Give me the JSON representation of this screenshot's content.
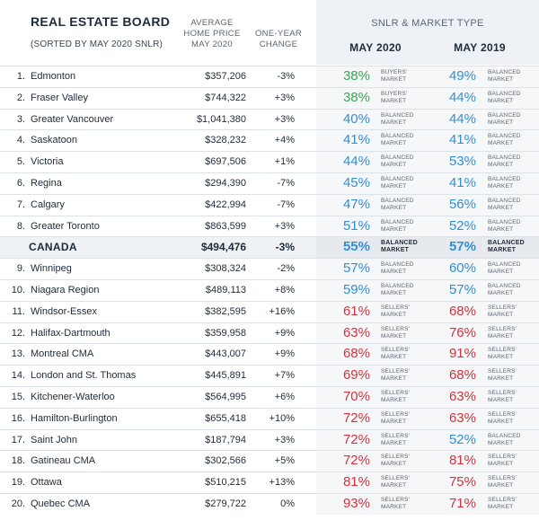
{
  "header": {
    "board_title": "REAL ESTATE BOARD",
    "sorted_note": "(SORTED BY MAY 2020 SNLR)",
    "avg_price_line1": "AVERAGE",
    "avg_price_line2": "HOME PRICE",
    "avg_price_line3": "MAY 2020",
    "change_line1": "ONE-YEAR",
    "change_line2": "CHANGE",
    "snlr_title": "SNLR & MARKET TYPE",
    "may2020": "MAY 2020",
    "may2019": "MAY 2019"
  },
  "colors": {
    "blue": "#2f8fd8",
    "green": "#3aa655",
    "red": "#d8303a"
  },
  "rows": [
    {
      "rank": "1.",
      "name": "Edmonton",
      "price": "$357,206",
      "change": "-3%",
      "snlr2020": "38%",
      "mkt2020a": "BUYERS'",
      "mkt2020b": "MARKET",
      "c2020": "green",
      "snlr2019": "49%",
      "mkt2019a": "BALANCED",
      "mkt2019b": "MARKET",
      "c2019": "blue"
    },
    {
      "rank": "2.",
      "name": "Fraser Valley",
      "price": "$744,322",
      "change": "+3%",
      "snlr2020": "38%",
      "mkt2020a": "BUYERS'",
      "mkt2020b": "MARKET",
      "c2020": "green",
      "snlr2019": "44%",
      "mkt2019a": "BALANCED",
      "mkt2019b": "MARKET",
      "c2019": "blue"
    },
    {
      "rank": "3.",
      "name": "Greater Vancouver",
      "price": "$1,041,380",
      "change": "+3%",
      "snlr2020": "40%",
      "mkt2020a": "BALANCED",
      "mkt2020b": "MARKET",
      "c2020": "blue",
      "snlr2019": "44%",
      "mkt2019a": "BALANCED",
      "mkt2019b": "MARKET",
      "c2019": "blue"
    },
    {
      "rank": "4.",
      "name": "Saskatoon",
      "price": "$328,232",
      "change": "+4%",
      "snlr2020": "41%",
      "mkt2020a": "BALANCED",
      "mkt2020b": "MARKET",
      "c2020": "blue",
      "snlr2019": "41%",
      "mkt2019a": "BALANCED",
      "mkt2019b": "MARKET",
      "c2019": "blue"
    },
    {
      "rank": "5.",
      "name": "Victoria",
      "price": "$697,506",
      "change": "+1%",
      "snlr2020": "44%",
      "mkt2020a": "BALANCED",
      "mkt2020b": "MARKET",
      "c2020": "blue",
      "snlr2019": "53%",
      "mkt2019a": "BALANCED",
      "mkt2019b": "MARKET",
      "c2019": "blue"
    },
    {
      "rank": "6.",
      "name": "Regina",
      "price": "$294,390",
      "change": "-7%",
      "snlr2020": "45%",
      "mkt2020a": "BALANCED",
      "mkt2020b": "MARKET",
      "c2020": "blue",
      "snlr2019": "41%",
      "mkt2019a": "BALANCED",
      "mkt2019b": "MARKET",
      "c2019": "blue"
    },
    {
      "rank": "7.",
      "name": "Calgary",
      "price": "$422,994",
      "change": "-7%",
      "snlr2020": "47%",
      "mkt2020a": "BALANCED",
      "mkt2020b": "MARKET",
      "c2020": "blue",
      "snlr2019": "56%",
      "mkt2019a": "BALANCED",
      "mkt2019b": "MARKET",
      "c2019": "blue"
    },
    {
      "rank": "8.",
      "name": "Greater Toronto",
      "price": "$863,599",
      "change": "+3%",
      "snlr2020": "51%",
      "mkt2020a": "BALANCED",
      "mkt2020b": "MARKET",
      "c2020": "blue",
      "snlr2019": "52%",
      "mkt2019a": "BALANCED",
      "mkt2019b": "MARKET",
      "c2019": "blue"
    },
    {
      "rank": "",
      "name": "CANADA",
      "price": "$494,476",
      "change": "-3%",
      "snlr2020": "55%",
      "mkt2020a": "BALANCED",
      "mkt2020b": "MARKET",
      "c2020": "blue",
      "snlr2019": "57%",
      "mkt2019a": "BALANCED",
      "mkt2019b": "MARKET",
      "c2019": "blue",
      "canada": true
    },
    {
      "rank": "9.",
      "name": "Winnipeg",
      "price": "$308,324",
      "change": "-2%",
      "snlr2020": "57%",
      "mkt2020a": "BALANCED",
      "mkt2020b": "MARKET",
      "c2020": "blue",
      "snlr2019": "60%",
      "mkt2019a": "BALANCED",
      "mkt2019b": "MARKET",
      "c2019": "blue"
    },
    {
      "rank": "10.",
      "name": "Niagara Region",
      "price": "$489,113",
      "change": "+8%",
      "snlr2020": "59%",
      "mkt2020a": "BALANCED",
      "mkt2020b": "MARKET",
      "c2020": "blue",
      "snlr2019": "57%",
      "mkt2019a": "BALANCED",
      "mkt2019b": "MARKET",
      "c2019": "blue"
    },
    {
      "rank": "11.",
      "name": "Windsor-Essex",
      "price": "$382,595",
      "change": "+16%",
      "snlr2020": "61%",
      "mkt2020a": "SELLERS'",
      "mkt2020b": "MARKET",
      "c2020": "red",
      "snlr2019": "68%",
      "mkt2019a": "SELLERS'",
      "mkt2019b": "MARKET",
      "c2019": "red"
    },
    {
      "rank": "12.",
      "name": "Halifax-Dartmouth",
      "price": "$359,958",
      "change": "+9%",
      "snlr2020": "63%",
      "mkt2020a": "SELLERS'",
      "mkt2020b": "MARKET",
      "c2020": "red",
      "snlr2019": "76%",
      "mkt2019a": "SELLERS'",
      "mkt2019b": "MARKET",
      "c2019": "red"
    },
    {
      "rank": "13.",
      "name": "Montreal CMA",
      "price": "$443,007",
      "change": "+9%",
      "snlr2020": "68%",
      "mkt2020a": "SELLERS'",
      "mkt2020b": "MARKET",
      "c2020": "red",
      "snlr2019": "91%",
      "mkt2019a": "SELLERS'",
      "mkt2019b": "MARKET",
      "c2019": "red"
    },
    {
      "rank": "14.",
      "name": "London and St. Thomas",
      "price": "$445,891",
      "change": "+7%",
      "snlr2020": "69%",
      "mkt2020a": "SELLERS'",
      "mkt2020b": "MARKET",
      "c2020": "red",
      "snlr2019": "68%",
      "mkt2019a": "SELLERS'",
      "mkt2019b": "MARKET",
      "c2019": "red"
    },
    {
      "rank": "15.",
      "name": "Kitchener-Waterloo",
      "price": "$564,995",
      "change": "+6%",
      "snlr2020": "70%",
      "mkt2020a": "SELLERS'",
      "mkt2020b": "MARKET",
      "c2020": "red",
      "snlr2019": "63%",
      "mkt2019a": "SELLERS'",
      "mkt2019b": "MARKET",
      "c2019": "red"
    },
    {
      "rank": "16.",
      "name": "Hamilton-Burlington",
      "price": "$655,418",
      "change": "+10%",
      "snlr2020": "72%",
      "mkt2020a": "SELLERS'",
      "mkt2020b": "MARKET",
      "c2020": "red",
      "snlr2019": "63%",
      "mkt2019a": "SELLERS'",
      "mkt2019b": "MARKET",
      "c2019": "red"
    },
    {
      "rank": "17.",
      "name": "Saint John",
      "price": "$187,794",
      "change": "+3%",
      "snlr2020": "72%",
      "mkt2020a": "SELLERS'",
      "mkt2020b": "MARKET",
      "c2020": "red",
      "snlr2019": "52%",
      "mkt2019a": "BALANCED",
      "mkt2019b": "MARKET",
      "c2019": "blue"
    },
    {
      "rank": "18.",
      "name": "Gatineau CMA",
      "price": "$302,566",
      "change": "+5%",
      "snlr2020": "72%",
      "mkt2020a": "SELLERS'",
      "mkt2020b": "MARKET",
      "c2020": "red",
      "snlr2019": "81%",
      "mkt2019a": "SELLERS'",
      "mkt2019b": "MARKET",
      "c2019": "red"
    },
    {
      "rank": "19.",
      "name": "Ottawa",
      "price": "$510,215",
      "change": "+13%",
      "snlr2020": "81%",
      "mkt2020a": "SELLERS'",
      "mkt2020b": "MARKET",
      "c2020": "red",
      "snlr2019": "75%",
      "mkt2019a": "SELLERS'",
      "mkt2019b": "MARKET",
      "c2019": "red"
    },
    {
      "rank": "20.",
      "name": "Quebec CMA",
      "price": "$279,722",
      "change": "0%",
      "snlr2020": "93%",
      "mkt2020a": "SELLERS'",
      "mkt2020b": "MARKET",
      "c2020": "red",
      "snlr2019": "71%",
      "mkt2019a": "SELLERS'",
      "mkt2019b": "MARKET",
      "c2019": "red"
    }
  ]
}
